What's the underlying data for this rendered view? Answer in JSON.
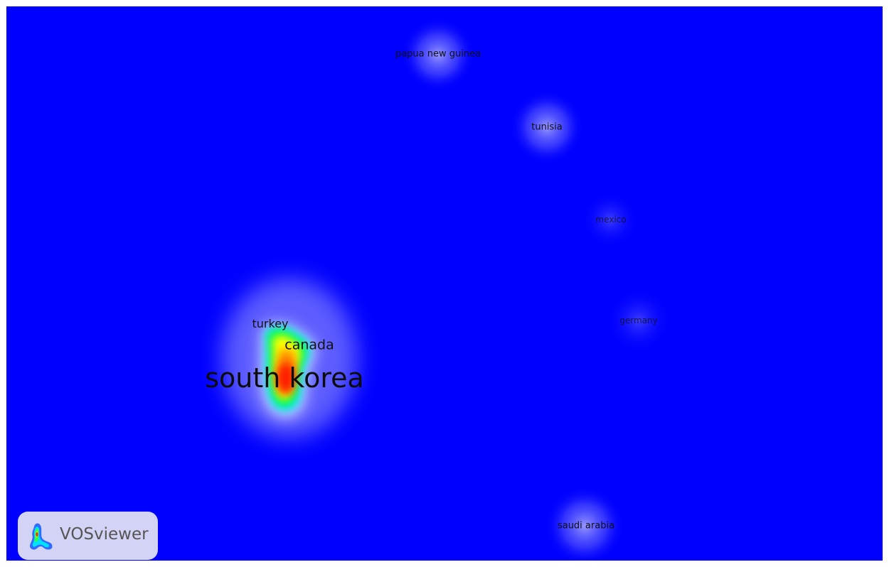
{
  "map": {
    "background_color": "#0000ff",
    "nodes": [
      {
        "key": "papua",
        "label": "papua new guinea",
        "density": "low"
      },
      {
        "key": "tunisia",
        "label": "tunisia",
        "density": "low"
      },
      {
        "key": "mexico",
        "label": "mexico",
        "density": "very low"
      },
      {
        "key": "germany",
        "label": "germany",
        "density": "very low"
      },
      {
        "key": "turkey",
        "label": "turkey",
        "density": "medium"
      },
      {
        "key": "canada",
        "label": "canada",
        "density": "high"
      },
      {
        "key": "southkorea",
        "label": "south korea",
        "density": "highest"
      },
      {
        "key": "saudi",
        "label": "saudi arabia",
        "density": "low"
      }
    ],
    "density_colors": [
      "#0000ff",
      "#00ff00",
      "#ffff00",
      "#ff8800",
      "#ff0000"
    ]
  },
  "logo": {
    "text": "VOSviewer",
    "icon": "vosviewer-logo-icon"
  }
}
